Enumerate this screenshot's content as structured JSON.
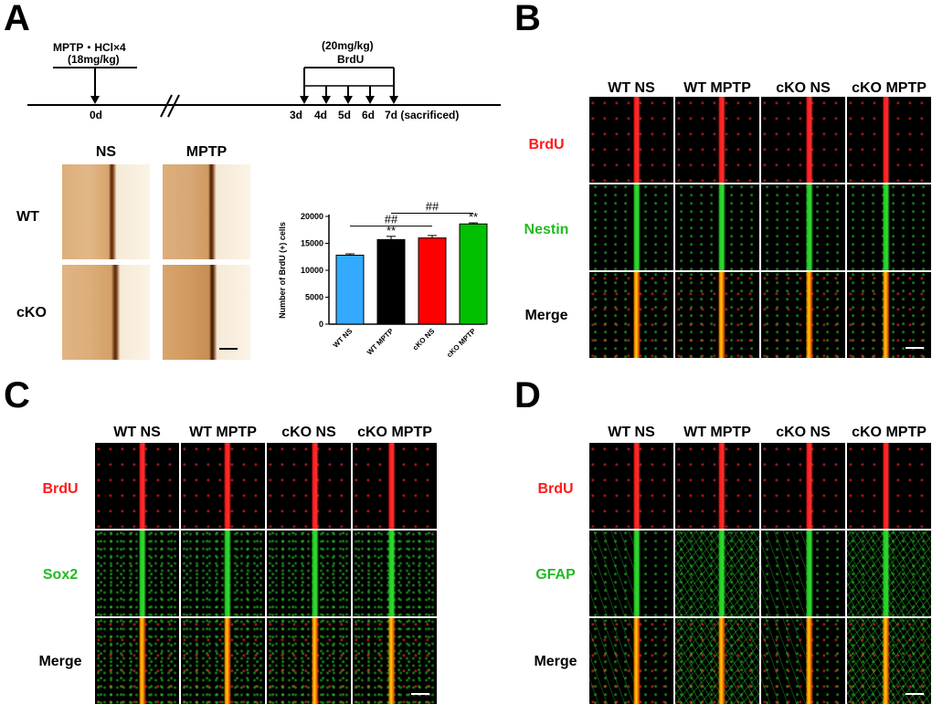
{
  "panelA": {
    "letter": "A",
    "timeline": {
      "mptp_label": "MPTP・HCl×4",
      "mptp_dose": "(18mg/kg)",
      "brdu_dose": "(20mg/kg)",
      "brdu_label": "BrdU",
      "day0": "0d",
      "day3": "3d",
      "day4": "4d",
      "day5": "5d",
      "day6": "6d",
      "day7": "7d (sacrificed)"
    },
    "ihc": {
      "col_ns": "NS",
      "col_mptp": "MPTP",
      "row_wt": "WT",
      "row_cko": "cKO"
    }
  },
  "chart_data": {
    "type": "bar",
    "categories": [
      "WT NS",
      "WT MPTP",
      "cKO NS",
      "cKO MPTP"
    ],
    "values": [
      12800,
      15700,
      16000,
      18600
    ],
    "errors": [
      250,
      600,
      450,
      200
    ],
    "colors": [
      "#33aaff",
      "#000000",
      "#ff0000",
      "#00c000"
    ],
    "ylabel": "Number of BrdU (+) cells",
    "ylim": [
      0,
      20000
    ],
    "yticks": [
      "0",
      "5000",
      "10000",
      "15000",
      "20000"
    ],
    "yticks_values": [
      0,
      5000,
      10000,
      15000,
      20000
    ],
    "annotations": {
      "stars": "**",
      "hash": "##"
    }
  },
  "panelB": {
    "letter": "B",
    "cols": [
      "WT NS",
      "WT MPTP",
      "cKO NS",
      "cKO MPTP"
    ],
    "rows": [
      "BrdU",
      "Nestin",
      "Merge"
    ],
    "row_colors": [
      "#ff1a1a",
      "#22bb22",
      "#000000"
    ]
  },
  "panelC": {
    "letter": "C",
    "cols": [
      "WT NS",
      "WT MPTP",
      "cKO NS",
      "cKO MPTP"
    ],
    "rows": [
      "BrdU",
      "Sox2",
      "Merge"
    ],
    "row_colors": [
      "#ff1a1a",
      "#22bb22",
      "#000000"
    ]
  },
  "panelD": {
    "letter": "D",
    "cols": [
      "WT NS",
      "WT MPTP",
      "cKO NS",
      "cKO MPTP"
    ],
    "rows": [
      "BrdU",
      "GFAP",
      "Merge"
    ],
    "row_colors": [
      "#ff1a1a",
      "#22bb22",
      "#000000"
    ]
  }
}
